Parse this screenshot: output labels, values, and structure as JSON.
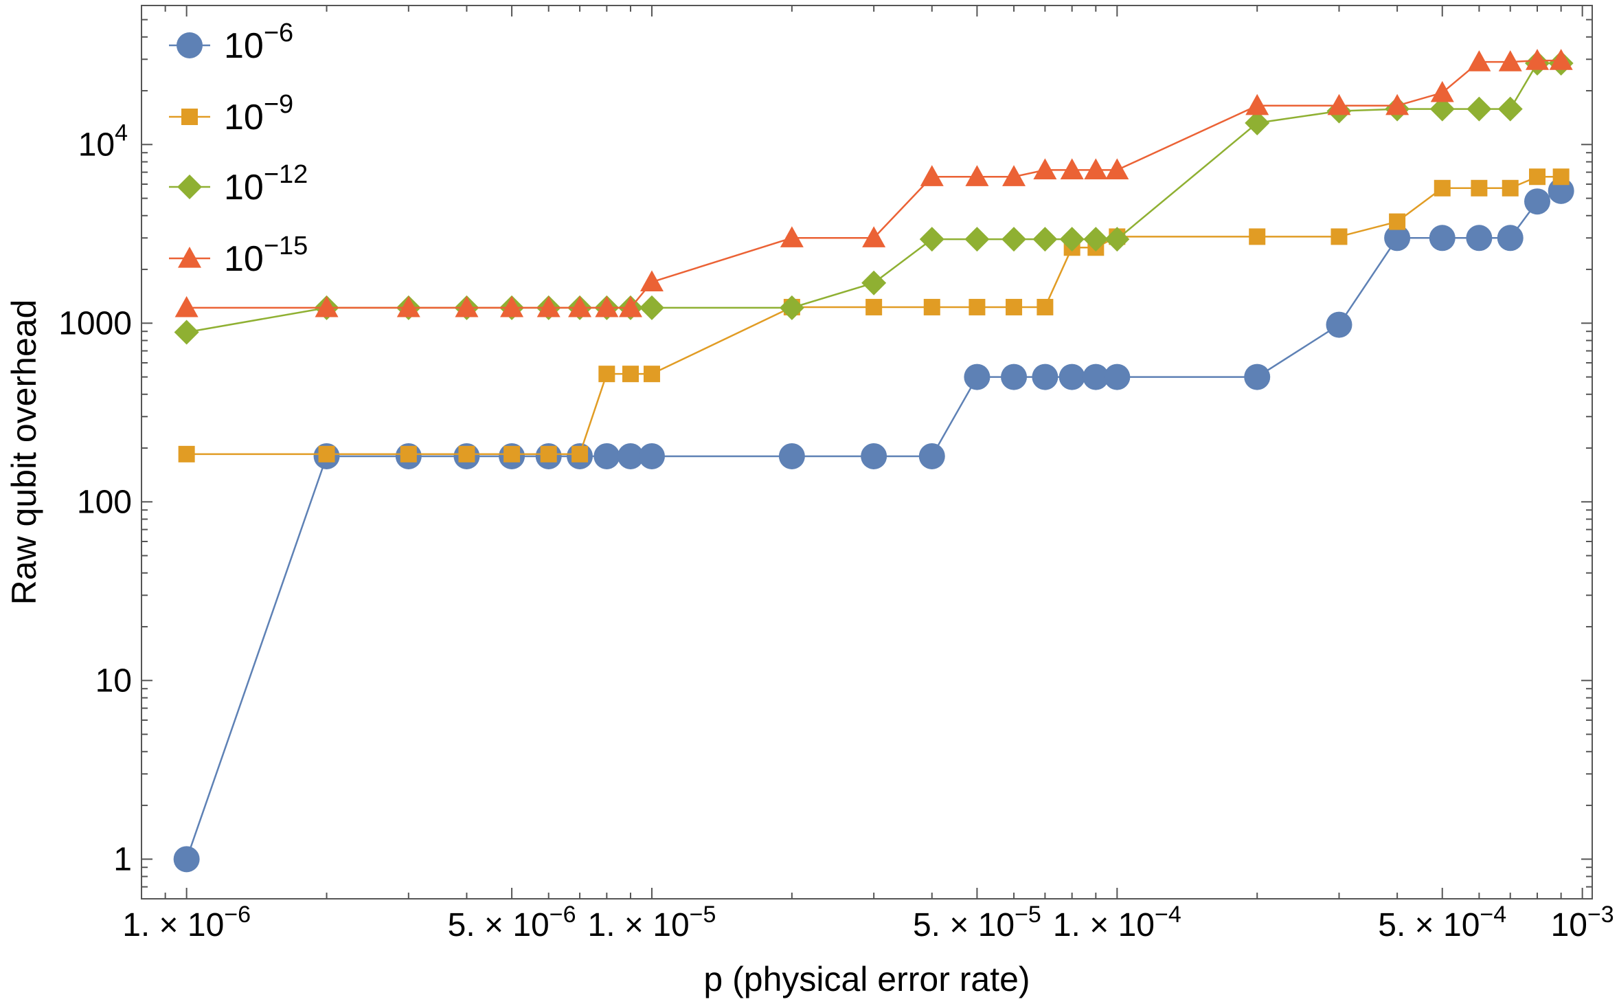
{
  "chart_data": {
    "type": "line",
    "title": "",
    "xlabel": "p (physical error rate)",
    "ylabel": "Raw qubit overhead",
    "xscale": "log",
    "yscale": "log",
    "xlim": [
      8e-07,
      0.00105
    ],
    "ylim": [
      0.6,
      60000
    ],
    "legend_position": "top-left",
    "x_ticks": [
      {
        "value": 1e-06,
        "mant": "1.",
        "sep": " × ",
        "base": "10",
        "exp": "−6"
      },
      {
        "value": 5e-06,
        "mant": "5.",
        "sep": " × ",
        "base": "10",
        "exp": "−6"
      },
      {
        "value": 1e-05,
        "mant": "1.",
        "sep": " × ",
        "base": "10",
        "exp": "−5"
      },
      {
        "value": 5e-05,
        "mant": "5.",
        "sep": " × ",
        "base": "10",
        "exp": "−5"
      },
      {
        "value": 0.0001,
        "mant": "1.",
        "sep": " × ",
        "base": "10",
        "exp": "−4"
      },
      {
        "value": 0.0005,
        "mant": "5.",
        "sep": " × ",
        "base": "10",
        "exp": "−4"
      },
      {
        "value": 0.001,
        "mant": "",
        "sep": "",
        "base": "10",
        "exp": "−3"
      }
    ],
    "y_ticks": [
      {
        "value": 1,
        "base": "1",
        "exp": ""
      },
      {
        "value": 10,
        "base": "10",
        "exp": ""
      },
      {
        "value": 100,
        "base": "100",
        "exp": ""
      },
      {
        "value": 1000,
        "base": "1000",
        "exp": ""
      },
      {
        "value": 10000,
        "base": "10",
        "exp": "4"
      }
    ],
    "series": [
      {
        "name_base": "10",
        "name_exp": "−6",
        "marker": "circle",
        "color": "#5E81B5",
        "x": [
          1e-06,
          2e-06,
          3e-06,
          4e-06,
          5e-06,
          6e-06,
          7e-06,
          8e-06,
          9e-06,
          1e-05,
          2e-05,
          3e-05,
          4e-05,
          5e-05,
          6e-05,
          7e-05,
          8e-05,
          9e-05,
          0.0001,
          0.0002,
          0.0003,
          0.0004,
          0.0005,
          0.0006,
          0.0007,
          0.0008,
          0.0009
        ],
        "y": [
          1,
          180,
          180,
          180,
          180,
          180,
          180,
          180,
          180,
          180,
          180,
          180,
          180,
          500,
          500,
          500,
          500,
          500,
          500,
          500,
          980,
          3000,
          3000,
          3000,
          3000,
          4800,
          5500
        ]
      },
      {
        "name_base": "10",
        "name_exp": "−9",
        "marker": "square",
        "color": "#E19C24",
        "x": [
          1e-06,
          2e-06,
          3e-06,
          4e-06,
          5e-06,
          6e-06,
          7e-06,
          8e-06,
          9e-06,
          1e-05,
          2e-05,
          3e-05,
          4e-05,
          5e-05,
          6e-05,
          7e-05,
          8e-05,
          9e-05,
          0.0001,
          0.0002,
          0.0003,
          0.0004,
          0.0005,
          0.0006,
          0.0007,
          0.0008,
          0.0009
        ],
        "y": [
          185,
          185,
          185,
          185,
          185,
          185,
          185,
          520,
          520,
          520,
          1230,
          1230,
          1230,
          1230,
          1230,
          1230,
          2650,
          2650,
          3050,
          3050,
          3050,
          3700,
          5700,
          5700,
          5700,
          6600,
          6600
        ]
      },
      {
        "name_base": "10",
        "name_exp": "−12",
        "marker": "diamond",
        "color": "#8FB032",
        "x": [
          1e-06,
          2e-06,
          3e-06,
          4e-06,
          5e-06,
          6e-06,
          7e-06,
          8e-06,
          9e-06,
          1e-05,
          2e-05,
          3e-05,
          4e-05,
          5e-05,
          6e-05,
          7e-05,
          8e-05,
          9e-05,
          0.0001,
          0.0002,
          0.0003,
          0.0004,
          0.0005,
          0.0006,
          0.0007,
          0.0008,
          0.0009
        ],
        "y": [
          890,
          1220,
          1220,
          1220,
          1220,
          1220,
          1220,
          1220,
          1220,
          1220,
          1220,
          1680,
          2950,
          2950,
          2950,
          2950,
          2950,
          2950,
          2950,
          13200,
          15400,
          15800,
          15800,
          15800,
          15800,
          28500,
          28500
        ]
      },
      {
        "name_base": "10",
        "name_exp": "−15",
        "marker": "triangle",
        "color": "#EB6235",
        "x": [
          1e-06,
          2e-06,
          3e-06,
          4e-06,
          5e-06,
          6e-06,
          7e-06,
          8e-06,
          9e-06,
          1e-05,
          2e-05,
          3e-05,
          4e-05,
          5e-05,
          6e-05,
          7e-05,
          8e-05,
          9e-05,
          0.0001,
          0.0002,
          0.0003,
          0.0004,
          0.0005,
          0.0006,
          0.0007,
          0.0008,
          0.0009
        ],
        "y": [
          1220,
          1220,
          1220,
          1220,
          1220,
          1220,
          1220,
          1220,
          1220,
          1700,
          3000,
          3000,
          6600,
          6600,
          6600,
          7200,
          7200,
          7200,
          7200,
          16500,
          16500,
          16500,
          19500,
          29000,
          29000,
          29500,
          29500
        ]
      }
    ]
  }
}
